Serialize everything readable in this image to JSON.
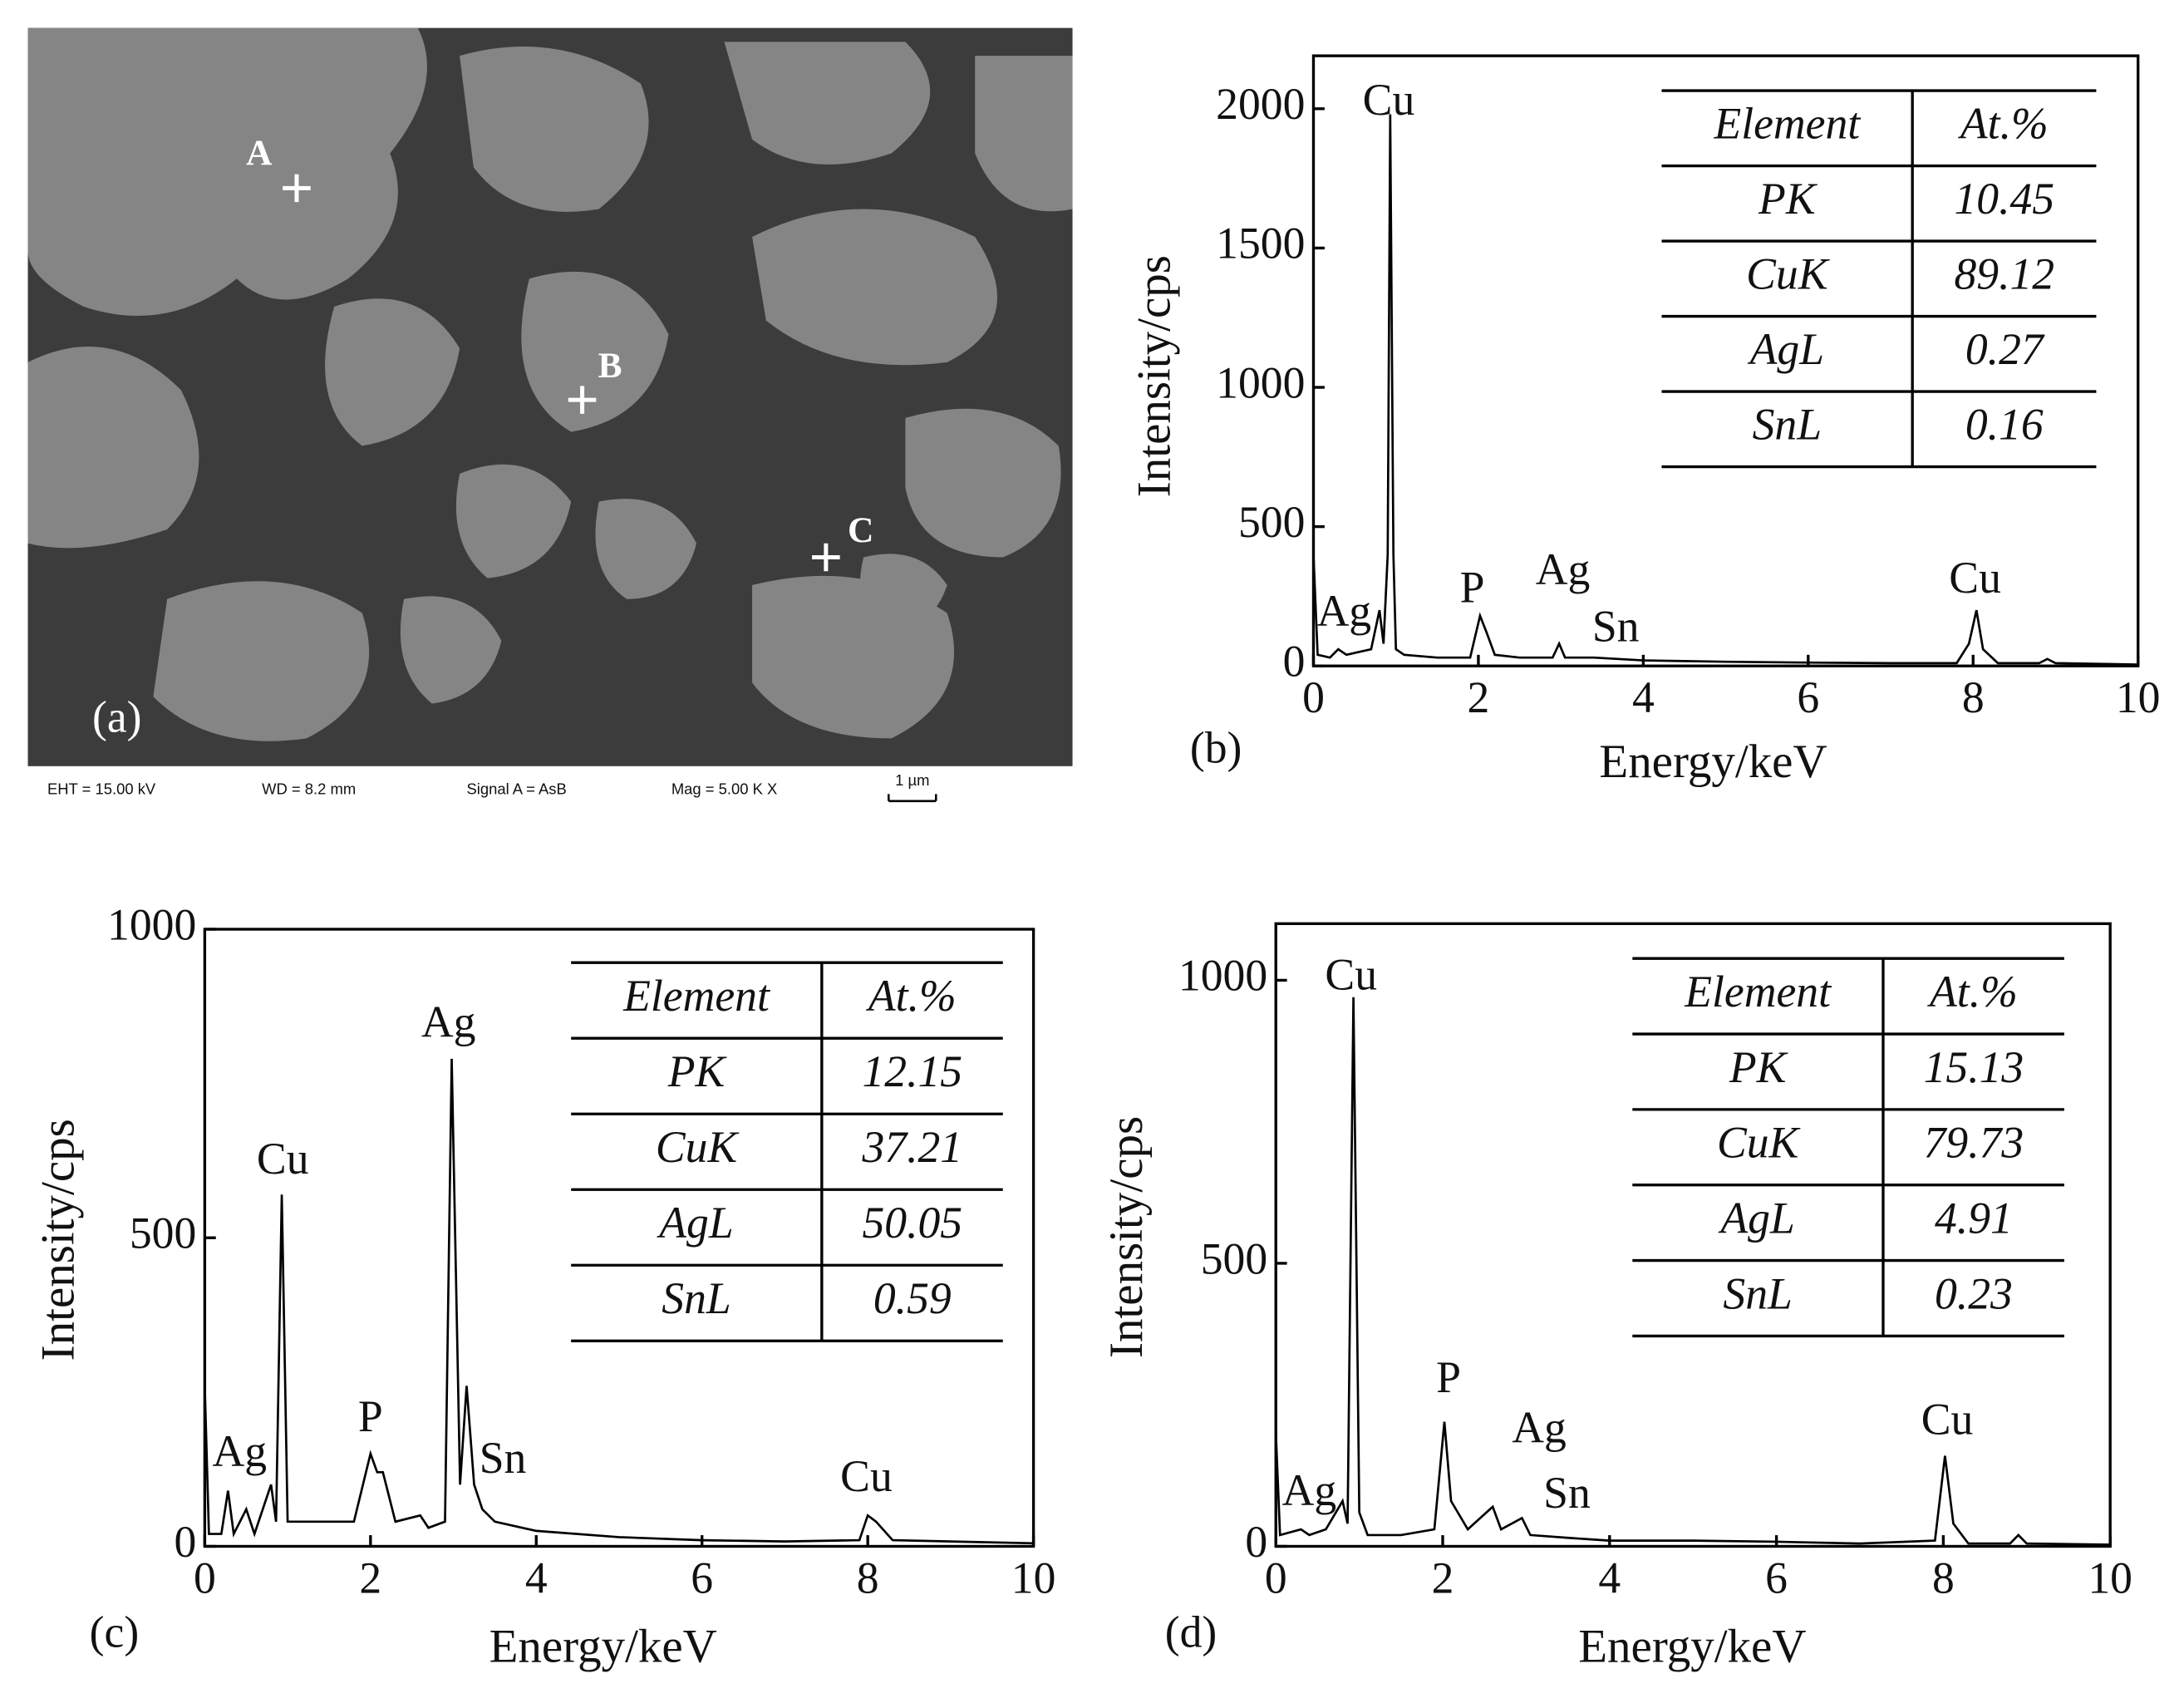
{
  "sem_image": {
    "point_labels": [
      "A",
      "B",
      "C"
    ],
    "panel_label": "(a)",
    "info": [
      "EHT = 15.00 kV",
      "WD =  8.2 mm",
      "Signal A = AsB",
      "Mag =   5.00 K X"
    ],
    "scale_bar": "1 µm"
  },
  "chart_data": [
    {
      "type": "line",
      "panel_label": "(b)",
      "x_label": "Energy/keV",
      "y_label": "Intensity/cps",
      "xlim": [
        0,
        10
      ],
      "xticks": [
        0,
        2,
        4,
        6,
        8,
        10
      ],
      "ylim": [
        0,
        2190
      ],
      "yticks": [
        0,
        500,
        1000,
        1500,
        2000
      ],
      "color": "#000000",
      "x": [
        0,
        0.05,
        0.2,
        0.3,
        0.4,
        0.55,
        0.7,
        0.8,
        0.85,
        0.9,
        0.93,
        0.97,
        1.0,
        1.1,
        1.5,
        1.9,
        2.02,
        2.1,
        2.2,
        2.5,
        2.9,
        2.98,
        3.05,
        3.4,
        4,
        5,
        6,
        7,
        7.8,
        7.95,
        8.04,
        8.12,
        8.3,
        8.8,
        8.9,
        9.0,
        10
      ],
      "values": [
        400,
        40,
        30,
        60,
        40,
        50,
        60,
        200,
        80,
        400,
        1980,
        400,
        60,
        40,
        30,
        30,
        180,
        120,
        40,
        30,
        30,
        80,
        30,
        30,
        20,
        15,
        12,
        10,
        10,
        80,
        200,
        60,
        10,
        10,
        25,
        10,
        5
      ],
      "annotations": [
        "Cu",
        "Ag",
        "P",
        "Ag",
        "Sn",
        "Cu"
      ],
      "table": {
        "columns": [
          "Element",
          "At.%"
        ],
        "rows": [
          [
            "PK",
            10.45
          ],
          [
            "CuK",
            89.12
          ],
          [
            "AgL",
            0.27
          ],
          [
            "SnL",
            0.16
          ]
        ]
      }
    },
    {
      "type": "line",
      "panel_label": "(c)",
      "x_label": "Energy/keV",
      "y_label": "Intensity/cps",
      "xlim": [
        0,
        10
      ],
      "xticks": [
        0,
        2,
        4,
        6,
        8,
        10
      ],
      "ylim": [
        0,
        1000
      ],
      "yticks": [
        0,
        500,
        1000
      ],
      "color": "#000000",
      "x": [
        0,
        0.05,
        0.2,
        0.28,
        0.35,
        0.5,
        0.6,
        0.8,
        0.86,
        0.93,
        1.0,
        1.3,
        1.8,
        2.0,
        2.08,
        2.15,
        2.3,
        2.6,
        2.7,
        2.9,
        2.98,
        3.08,
        3.16,
        3.25,
        3.35,
        3.5,
        4,
        5,
        6,
        7,
        7.9,
        8.0,
        8.1,
        8.3,
        10
      ],
      "values": [
        260,
        20,
        20,
        90,
        20,
        60,
        20,
        100,
        40,
        570,
        40,
        40,
        40,
        150,
        120,
        120,
        40,
        50,
        30,
        40,
        790,
        100,
        260,
        100,
        60,
        40,
        25,
        15,
        10,
        8,
        10,
        50,
        40,
        10,
        5
      ],
      "annotations": [
        "Ag",
        "Cu",
        "P",
        "Ag",
        "Sn",
        "Cu"
      ],
      "table": {
        "columns": [
          "Element",
          "At.%"
        ],
        "rows": [
          [
            "PK",
            12.15
          ],
          [
            "CuK",
            37.21
          ],
          [
            "AgL",
            50.05
          ],
          [
            "SnL",
            0.59
          ]
        ]
      }
    },
    {
      "type": "line",
      "panel_label": "(d)",
      "x_label": "Energy/keV",
      "y_label": "Intensity/cps",
      "xlim": [
        0,
        10
      ],
      "xticks": [
        0,
        2,
        4,
        6,
        8,
        10
      ],
      "ylim": [
        0,
        1100
      ],
      "yticks": [
        0,
        500,
        1000
      ],
      "color": "#000000",
      "x": [
        0,
        0.05,
        0.3,
        0.4,
        0.6,
        0.8,
        0.86,
        0.93,
        1.0,
        1.1,
        1.5,
        1.9,
        2.02,
        2.1,
        2.3,
        2.6,
        2.7,
        2.95,
        3.05,
        3.5,
        4,
        5,
        6,
        7,
        7.9,
        8.02,
        8.12,
        8.3,
        8.8,
        8.9,
        9.0,
        10
      ],
      "values": [
        200,
        20,
        30,
        20,
        30,
        80,
        40,
        970,
        60,
        20,
        20,
        30,
        220,
        80,
        30,
        70,
        30,
        50,
        20,
        15,
        10,
        10,
        8,
        5,
        10,
        160,
        40,
        5,
        5,
        20,
        5,
        3
      ],
      "annotations": [
        "Ag",
        "Cu",
        "P",
        "Ag",
        "Sn",
        "Cu"
      ],
      "table": {
        "columns": [
          "Element",
          "At.%"
        ],
        "rows": [
          [
            "PK",
            15.13
          ],
          [
            "CuK",
            79.73
          ],
          [
            "AgL",
            4.91
          ],
          [
            "SnL",
            0.23
          ]
        ]
      }
    }
  ]
}
